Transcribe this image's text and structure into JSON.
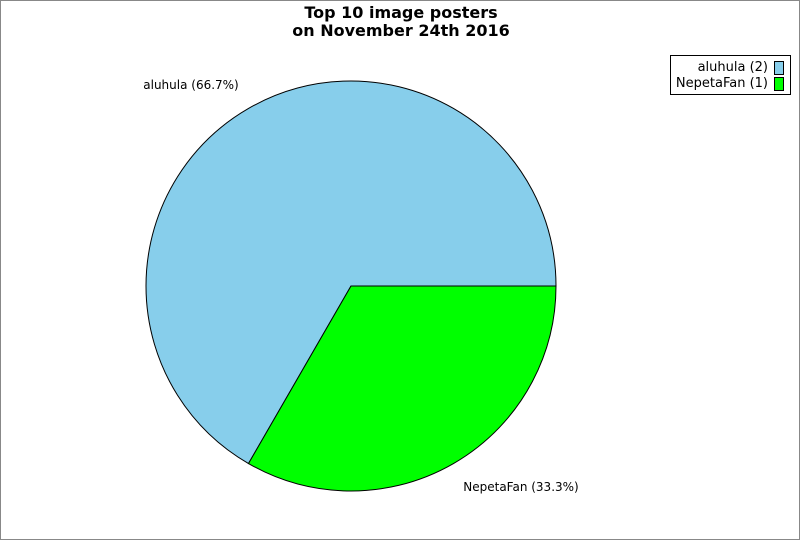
{
  "chart_data": {
    "type": "pie",
    "title": [
      "Top 10 image posters",
      "on November 24th 2016"
    ],
    "slices": [
      {
        "label": "aluhula",
        "value": 2,
        "percent_label": "aluhula (66.7%)",
        "legend": "aluhula (2)",
        "color": "#87ceeb"
      },
      {
        "label": "NepetaFan",
        "value": 1,
        "percent_label": "NepetaFan (33.3%)",
        "legend": "NepetaFan (1)",
        "color": "#00ff00"
      }
    ],
    "legend_position": "top-right"
  }
}
